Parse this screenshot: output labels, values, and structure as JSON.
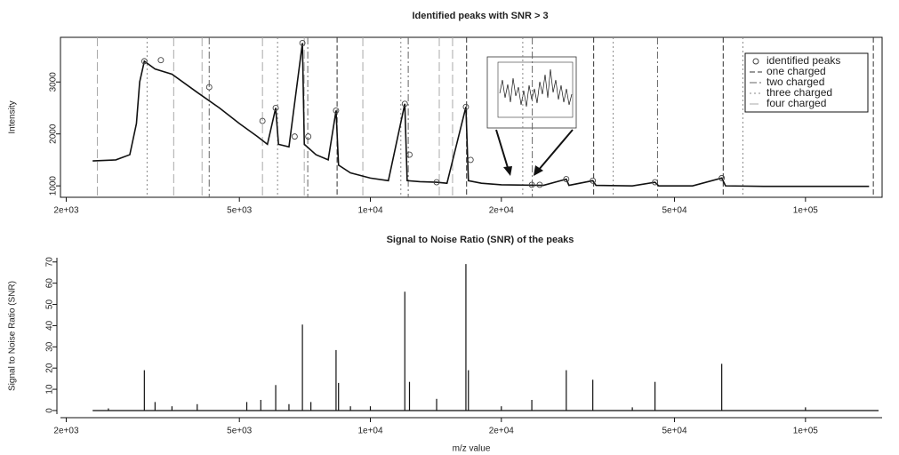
{
  "chart_data": [
    {
      "type": "line",
      "title": "Identified peaks with SNR > 3",
      "y_label": "Intensity",
      "xscale": "log",
      "xlim": [
        1940,
        150000
      ],
      "ylim": [
        780,
        3860
      ],
      "xticks": [
        {
          "value": 2000,
          "label": "2e+03"
        },
        {
          "value": 5000,
          "label": "5e+03"
        },
        {
          "value": 10000,
          "label": "1e+04"
        },
        {
          "value": 20000,
          "label": "2e+04"
        },
        {
          "value": 50000,
          "label": "5e+04"
        },
        {
          "value": 100000,
          "label": "1e+05"
        }
      ],
      "yticks": [
        1000,
        2000,
        3000
      ],
      "legend": "top-right",
      "spectrum": {
        "color": "#111111",
        "x": [
          2300,
          2600,
          2800,
          2900,
          2950,
          3024,
          3200,
          3500,
          4000,
          4500,
          5000,
          5500,
          5800,
          6060,
          6150,
          6500,
          6980,
          7050,
          7500,
          8000,
          8340,
          8450,
          9000,
          10000,
          11000,
          12000,
          12150,
          13000,
          14200,
          15000,
          16580,
          16800,
          18000,
          20000,
          25000,
          28200,
          28600,
          32450,
          33000,
          40000,
          45100,
          46000,
          55000,
          64200,
          65500,
          80000,
          100000,
          140000
        ],
        "values": [
          1480,
          1500,
          1600,
          2200,
          3000,
          3400,
          3250,
          3150,
          2800,
          2500,
          2200,
          1950,
          1800,
          2500,
          1800,
          1750,
          3750,
          1800,
          1600,
          1500,
          2450,
          1400,
          1250,
          1150,
          1100,
          2580,
          1100,
          1080,
          1070,
          1050,
          2520,
          1100,
          1050,
          1020,
          1010,
          1130,
          1010,
          1100,
          1010,
          1000,
          1070,
          1000,
          1000,
          1150,
          1000,
          990,
          990,
          990
        ]
      },
      "peaks": {
        "name": "identified peaks",
        "color": "#444444",
        "x": [
          3024,
          3300,
          4262,
          5650,
          6060,
          6700,
          6980,
          7200,
          8340,
          12000,
          12300,
          14200,
          16580,
          17000,
          23500,
          24500,
          28200,
          32450,
          45100,
          64200
        ],
        "values": [
          3400,
          3420,
          2900,
          2250,
          2500,
          1950,
          3750,
          1950,
          2450,
          2580,
          1600,
          1070,
          2520,
          1500,
          1020,
          1020,
          1130,
          1100,
          1070,
          1150
        ]
      },
      "reference_lines": [
        {
          "name": "one charged",
          "color": "#333333",
          "x": [
            8386,
            16640,
            32600,
            64700,
            143200
          ]
        },
        {
          "name": "two charged",
          "color": "#666666",
          "x": [
            4262,
            7180,
            12220,
            23560,
            45700
          ]
        },
        {
          "name": "three charged",
          "color": "#888888",
          "x": [
            3068,
            6120,
            11750,
            22400,
            36150,
            71800
          ]
        },
        {
          "name": "four charged",
          "color": "#aaaaaa",
          "x": [
            2358,
            3532,
            4104,
            5650,
            7048,
            9610,
            14400,
            15450
          ]
        }
      ]
    },
    {
      "type": "spike",
      "title": "Signal to Noise Ratio (SNR) of the peaks",
      "x_label": "m/z value",
      "y_label": "Signal to Noise Ratio (SNR)",
      "xscale": "log",
      "xlim": [
        1940,
        150000
      ],
      "ylim": [
        -1.7,
        72
      ],
      "xticks": [
        {
          "value": 2000,
          "label": "2e+03"
        },
        {
          "value": 5000,
          "label": "5e+03"
        },
        {
          "value": 10000,
          "label": "1e+04"
        },
        {
          "value": 20000,
          "label": "2e+04"
        },
        {
          "value": 50000,
          "label": "5e+04"
        },
        {
          "value": 100000,
          "label": "1e+05"
        }
      ],
      "yticks": [
        0,
        10,
        20,
        30,
        40,
        50,
        60,
        70
      ],
      "color": "#111111",
      "x": [
        2500,
        3024,
        3200,
        3500,
        4000,
        5200,
        5600,
        6060,
        6500,
        6980,
        7300,
        8340,
        8450,
        9000,
        10000,
        12000,
        12300,
        14200,
        16580,
        16800,
        20000,
        23500,
        28200,
        32450,
        40000,
        45100,
        64200,
        100000
      ],
      "values": [
        1,
        19,
        4,
        2,
        3,
        4,
        5,
        12,
        3,
        40.5,
        4,
        28.5,
        13,
        2,
        2,
        56,
        13.5,
        5.5,
        69,
        19,
        2,
        5,
        19,
        14.5,
        1.5,
        13.5,
        22,
        1.5
      ]
    }
  ]
}
